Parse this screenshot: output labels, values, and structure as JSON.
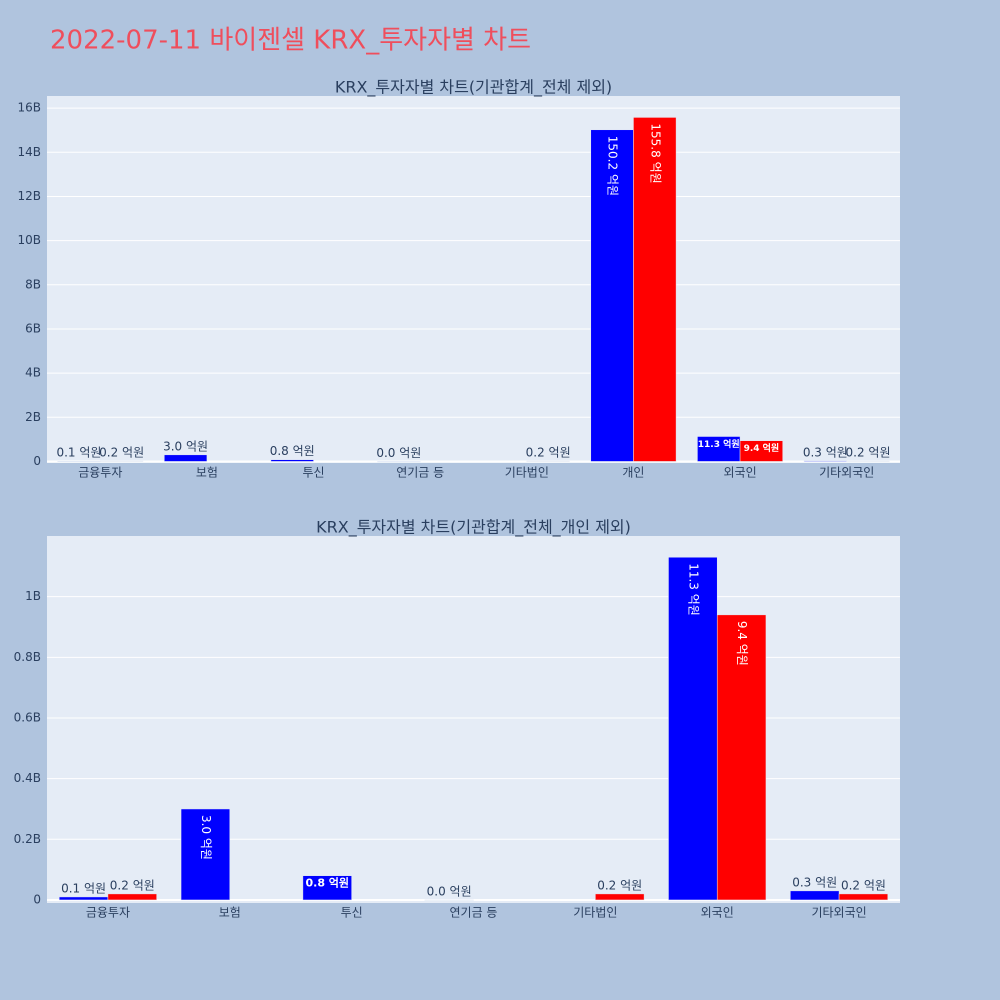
{
  "title": "2022-07-11 바이젠셀 KRX_투자자별 차트",
  "chart_data": [
    {
      "type": "bar",
      "title": "KRX_투자자별 차트(기관합계_전체 제외)",
      "categories": [
        "금융투자",
        "보험",
        "투신",
        "연기금 등",
        "기타법인",
        "개인",
        "외국인",
        "기타외국인"
      ],
      "series": [
        {
          "color": "#0000ff",
          "values": [
            10000000,
            300000000,
            80000000,
            0,
            null,
            15020000000,
            1130000000,
            30000000
          ],
          "value_labels": [
            "0.1 억원",
            "3.0 억원",
            "0.8 억원",
            "0.0 억원",
            null,
            "150.2 억원",
            "11.3 억원",
            "0.3 억원"
          ]
        },
        {
          "color": "#ff0000",
          "values": [
            20000000,
            null,
            null,
            null,
            20000000,
            15580000000,
            940000000,
            20000000
          ],
          "value_labels": [
            "0.2 억원",
            null,
            null,
            null,
            "0.2 억원",
            "155.8 억원",
            "9.4 억원",
            "0.2 억원"
          ]
        }
      ],
      "ylim": [
        -70000000,
        16550000000
      ],
      "yticks": [
        0,
        {
          "value": 2000000000,
          "label": "2B"
        },
        {
          "value": 4000000000,
          "label": "4B"
        },
        {
          "value": 6000000000,
          "label": "6B"
        },
        {
          "value": 8000000000,
          "label": "8B"
        },
        {
          "value": 10000000000,
          "label": "10B"
        },
        {
          "value": 12000000000,
          "label": "12B"
        },
        {
          "value": 14000000000,
          "label": "14B"
        },
        {
          "value": 16000000000,
          "label": "16B"
        }
      ],
      "grid": true
    },
    {
      "type": "bar",
      "title": "KRX_투자자별 차트(기관합계_전체_개인 제외)",
      "categories": [
        "금융투자",
        "보험",
        "투신",
        "연기금 등",
        "기타법인",
        "외국인",
        "기타외국인"
      ],
      "series": [
        {
          "color": "#0000ff",
          "values": [
            10000000,
            300000000,
            80000000,
            0,
            null,
            1130000000,
            30000000
          ],
          "value_labels": [
            "0.1 억원",
            "3.0 억원",
            "0.8 억원",
            "0.0 억원",
            null,
            "11.3 억원",
            "0.3 억원"
          ]
        },
        {
          "color": "#ff0000",
          "values": [
            20000000,
            null,
            null,
            null,
            20000000,
            940000000,
            20000000
          ],
          "value_labels": [
            "0.2 억원",
            null,
            null,
            null,
            "0.2 억원",
            "9.4 억원",
            "0.2 억원"
          ]
        }
      ],
      "ylim": [
        -10000000,
        1200000000
      ],
      "yticks": [
        0,
        {
          "value": 200000000,
          "label": "0.2B"
        },
        {
          "value": 400000000,
          "label": "0.4B"
        },
        {
          "value": 600000000,
          "label": "0.6B"
        },
        {
          "value": 800000000,
          "label": "0.8B"
        },
        {
          "value": 1000000000,
          "label": "1B"
        }
      ],
      "grid": true
    }
  ]
}
